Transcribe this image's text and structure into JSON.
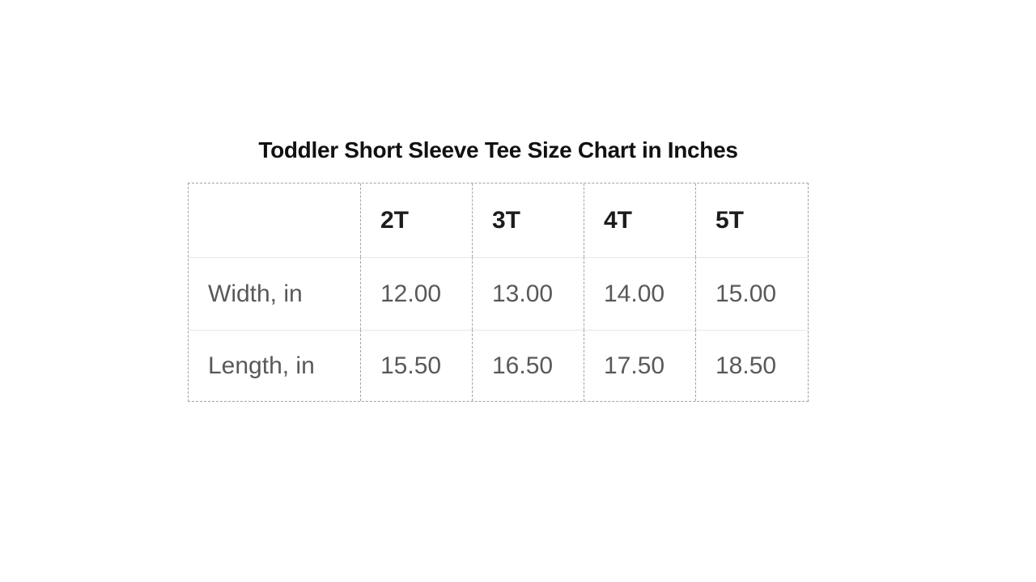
{
  "title": "Toddler Short Sleeve Tee Size Chart in Inches",
  "colors": {
    "background": "#ffffff",
    "title_text": "#111111",
    "header_text": "#1c1c1c",
    "body_text": "#595959",
    "dashed_border": "#a3a3a3",
    "row_separator": "#e7e7e7"
  },
  "chart_data": {
    "type": "table",
    "title": "Toddler Short Sleeve Tee Size Chart in Inches",
    "columns": [
      "",
      "2T",
      "3T",
      "4T",
      "5T"
    ],
    "rows": [
      {
        "label": "Width, in",
        "values": [
          "12.00",
          "13.00",
          "14.00",
          "15.00"
        ]
      },
      {
        "label": "Length, in",
        "values": [
          "15.50",
          "16.50",
          "17.50",
          "18.50"
        ]
      }
    ],
    "units": "inches",
    "layout_hints": {
      "outer_border": "dashed",
      "column_separators": "dashed",
      "row_separators": "solid-light",
      "cell_alignment": "left",
      "header_style": "bold-black",
      "body_style": "regular-gray"
    }
  }
}
